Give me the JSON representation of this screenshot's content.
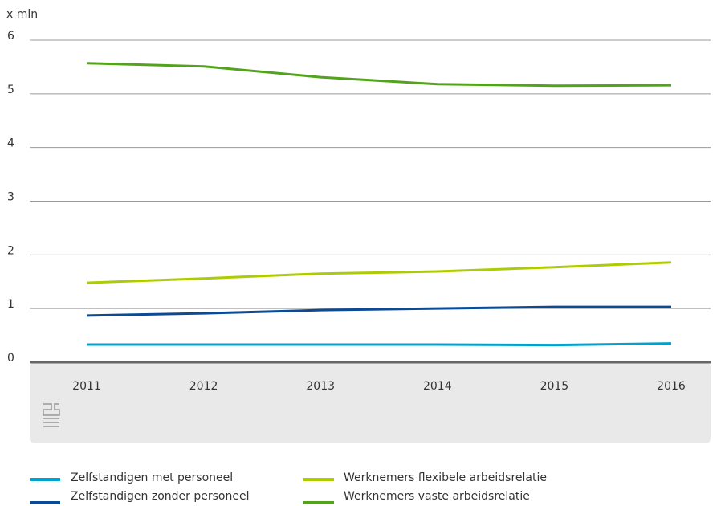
{
  "chart_data": {
    "type": "line",
    "y_label": "x mln",
    "categories": [
      "2011",
      "2012",
      "2013",
      "2014",
      "2015",
      "2016"
    ],
    "series": [
      {
        "name": "Zelfstandigen met personeel",
        "color": "#00a1cd",
        "values": [
          0.33,
          0.33,
          0.33,
          0.33,
          0.32,
          0.35
        ]
      },
      {
        "name": "Zelfstandigen zonder personeel",
        "color": "#0b4a94",
        "values": [
          0.87,
          0.91,
          0.97,
          1.0,
          1.03,
          1.03
        ]
      },
      {
        "name": "Werknemers flexibele arbeidsrelatie",
        "color": "#afcb05",
        "values": [
          1.48,
          1.56,
          1.65,
          1.69,
          1.77,
          1.86
        ]
      },
      {
        "name": "Werknemers vaste arbeidsrelatie",
        "color": "#53a31d",
        "values": [
          5.57,
          5.51,
          5.31,
          5.18,
          5.15,
          5.16
        ]
      }
    ],
    "ylim": [
      0,
      6
    ],
    "yticks": [
      0,
      1,
      2,
      3,
      4,
      5,
      6
    ],
    "grid": true
  }
}
